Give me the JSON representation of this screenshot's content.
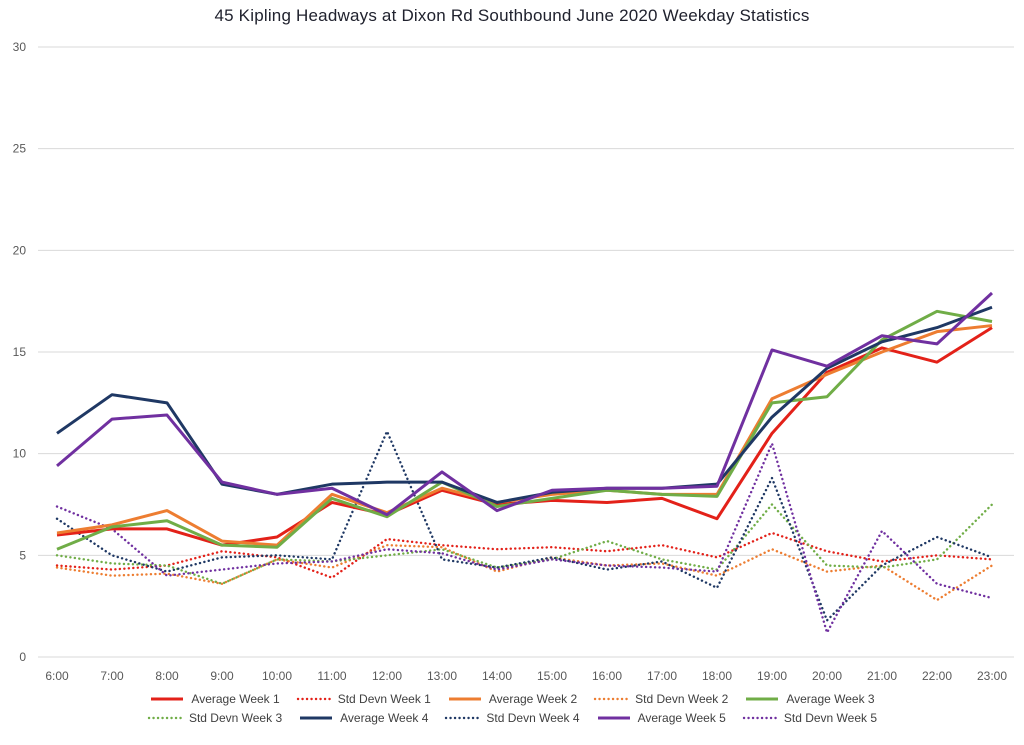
{
  "chart_data": {
    "type": "line",
    "title": "45 Kipling Headways at Dixon Rd Southbound June 2020 Weekday Statistics",
    "xlabel": "",
    "ylabel": "",
    "ylim": [
      0,
      30
    ],
    "y_ticks": [
      0,
      5,
      10,
      15,
      20,
      25,
      30
    ],
    "grid": "horizontal",
    "legend_position": "bottom",
    "categories": [
      "6:00",
      "7:00",
      "8:00",
      "9:00",
      "10:00",
      "11:00",
      "12:00",
      "13:00",
      "14:00",
      "15:00",
      "16:00",
      "17:00",
      "18:00",
      "19:00",
      "20:00",
      "21:00",
      "22:00",
      "23:00"
    ],
    "series": [
      {
        "name": "Average Week 1",
        "color": "#e32119",
        "style": "solid",
        "values": [
          6.0,
          6.3,
          6.3,
          5.5,
          5.9,
          7.6,
          7.0,
          8.2,
          7.5,
          7.7,
          7.6,
          7.8,
          6.8,
          11.0,
          14.0,
          15.2,
          14.5,
          16.2
        ]
      },
      {
        "name": "Std Devn Week 1",
        "color": "#e32119",
        "style": "dotted",
        "values": [
          4.5,
          4.3,
          4.5,
          5.2,
          4.9,
          3.9,
          5.8,
          5.5,
          5.3,
          5.4,
          5.2,
          5.5,
          4.9,
          6.1,
          5.2,
          4.7,
          5.0,
          4.8
        ]
      },
      {
        "name": "Average Week 2",
        "color": "#ed7d31",
        "style": "solid",
        "values": [
          6.1,
          6.5,
          7.2,
          5.7,
          5.5,
          8.0,
          7.1,
          8.3,
          7.6,
          8.0,
          8.2,
          8.0,
          8.0,
          12.7,
          13.9,
          15.0,
          16.0,
          16.3
        ]
      },
      {
        "name": "Std Devn Week 2",
        "color": "#ed7d31",
        "style": "dotted",
        "values": [
          4.4,
          4.0,
          4.1,
          3.6,
          4.8,
          4.4,
          5.5,
          5.4,
          4.2,
          4.9,
          4.5,
          4.6,
          4.0,
          5.3,
          4.2,
          4.5,
          2.8,
          4.5
        ]
      },
      {
        "name": "Average Week 3",
        "color": "#70ad47",
        "style": "solid",
        "values": [
          5.3,
          6.4,
          6.7,
          5.5,
          5.4,
          7.8,
          6.9,
          8.6,
          7.4,
          7.8,
          8.2,
          8.0,
          7.9,
          12.5,
          12.8,
          15.6,
          17.0,
          16.5
        ]
      },
      {
        "name": "Std Devn Week 3",
        "color": "#70ad47",
        "style": "dotted",
        "values": [
          5.0,
          4.6,
          4.5,
          3.6,
          4.8,
          4.7,
          5.0,
          5.3,
          4.4,
          4.8,
          5.7,
          4.8,
          4.3,
          7.5,
          4.5,
          4.4,
          4.8,
          7.5
        ]
      },
      {
        "name": "Average Week 4",
        "color": "#1f3864",
        "style": "solid",
        "values": [
          11.0,
          12.9,
          12.5,
          8.5,
          8.0,
          8.5,
          8.6,
          8.6,
          7.6,
          8.1,
          8.3,
          8.3,
          8.5,
          11.8,
          14.2,
          15.5,
          16.2,
          17.2
        ]
      },
      {
        "name": "Std Devn Week 4",
        "color": "#1f3864",
        "style": "dotted",
        "values": [
          6.8,
          5.0,
          4.2,
          4.9,
          5.0,
          4.8,
          11.1,
          4.8,
          4.4,
          4.9,
          4.3,
          4.7,
          3.4,
          8.8,
          1.8,
          4.5,
          5.9,
          4.9
        ]
      },
      {
        "name": "Average Week 5",
        "color": "#7030a0",
        "style": "solid",
        "values": [
          9.4,
          11.7,
          11.9,
          8.6,
          8.0,
          8.3,
          7.0,
          9.1,
          7.2,
          8.2,
          8.3,
          8.3,
          8.4,
          15.1,
          14.3,
          15.8,
          15.4,
          17.9
        ]
      },
      {
        "name": "Std Devn Week 5",
        "color": "#7030a0",
        "style": "dotted",
        "values": [
          7.4,
          6.3,
          4.0,
          4.3,
          4.6,
          4.7,
          5.3,
          5.1,
          4.3,
          4.8,
          4.5,
          4.4,
          4.2,
          10.5,
          1.2,
          6.2,
          3.6,
          2.9
        ]
      }
    ]
  }
}
